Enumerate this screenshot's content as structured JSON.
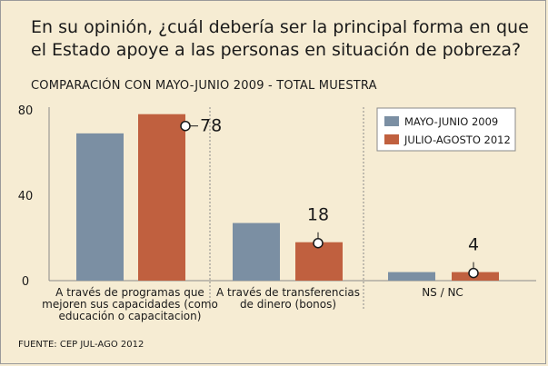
{
  "title": "En su opinión, ¿cuál debería ser la principal forma en que el Estado apoye a las personas en situación de pobreza?",
  "subtitle": "COMPARACIÓN CON MAYO-JUNIO 2009 - TOTAL MUESTRA",
  "source": "FUENTE: CEP JUL-AGO 2012",
  "chart_data": {
    "type": "bar",
    "categories": [
      "A través de programas que mejoren sus capacidades (como educación o capacitacion)",
      "A través de transferencias de dinero (bonos)",
      "NS / NC"
    ],
    "category_lines": [
      [
        "A través de programas que",
        "mejoren sus capacidades (como",
        "educación o capacitacion)"
      ],
      [
        "A través de transferencias",
        "de dinero (bonos)"
      ],
      [
        "NS / NC"
      ]
    ],
    "series": [
      {
        "name": "MAYO-JUNIO 2009",
        "color": "#7b8fa3",
        "values": [
          69,
          27,
          4
        ]
      },
      {
        "name": "JULIO-AGOSTO 2012",
        "color": "#c0603f",
        "values": [
          78,
          18,
          4
        ]
      }
    ],
    "data_labels": [
      "78",
      "18",
      "4"
    ],
    "y_ticks": [
      "80",
      "40",
      "0"
    ],
    "ylim": [
      0,
      80
    ],
    "grid": false,
    "legend_position": "top-right"
  }
}
